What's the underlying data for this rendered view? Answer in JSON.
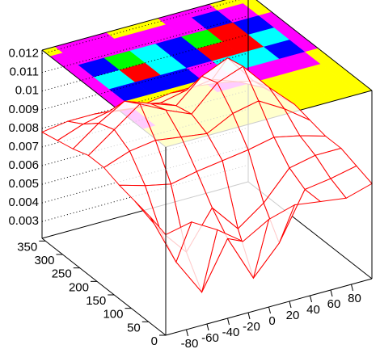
{
  "chart_data": {
    "type": "surface",
    "x": [
      -100,
      -75,
      -50,
      -25,
      0,
      25,
      50,
      75,
      100
    ],
    "y": [
      0,
      45,
      90,
      135,
      180,
      225,
      270,
      315,
      360
    ],
    "z": [
      [
        0.0075,
        0.0078,
        0.007,
        0.006,
        0.0068,
        0.0072,
        0.007,
        0.0068,
        0.0072
      ],
      [
        0.0078,
        0.005,
        0.003,
        0.0055,
        0.003,
        0.0045,
        0.007,
        0.0072,
        0.0075
      ],
      [
        0.008,
        0.006,
        0.0045,
        0.0065,
        0.005,
        0.006,
        0.0075,
        0.0078,
        0.0078
      ],
      [
        0.0082,
        0.0078,
        0.0075,
        0.0078,
        0.008,
        0.0082,
        0.0085,
        0.0082,
        0.0078
      ],
      [
        0.0085,
        0.009,
        0.0092,
        0.009,
        0.0088,
        0.0095,
        0.0098,
        0.009,
        0.008
      ],
      [
        0.0085,
        0.0095,
        0.0105,
        0.0098,
        0.0092,
        0.0105,
        0.011,
        0.0095,
        0.0082
      ],
      [
        0.0082,
        0.0092,
        0.01,
        0.0095,
        0.009,
        0.0102,
        0.0108,
        0.0092,
        0.008
      ],
      [
        0.008,
        0.0085,
        0.0088,
        0.0086,
        0.0085,
        0.0088,
        0.009,
        0.0085,
        0.0078
      ],
      [
        0.0078,
        0.008,
        0.008,
        0.0078,
        0.0078,
        0.008,
        0.008,
        0.0078,
        0.0076
      ]
    ],
    "color": "#ff0000",
    "contour_levels": [
      0.008,
      0.009,
      0.0095,
      0.01,
      0.0105
    ],
    "contour_colors": [
      "#ffff00",
      "#ff00ff",
      "#0000ff",
      "#00ffff",
      "#00ff00",
      "#ff0000"
    ],
    "xlim": [
      -100,
      100
    ],
    "ylim": [
      0,
      360
    ],
    "zlim": [
      0.0021,
      0.0122
    ],
    "xticks": [
      -80,
      -60,
      -40,
      -20,
      0,
      20,
      40,
      60,
      80
    ],
    "yticks": [
      0,
      50,
      100,
      150,
      200,
      250,
      300,
      350
    ],
    "zticks": [
      0.003,
      0.004,
      0.005,
      0.006,
      0.007,
      0.008,
      0.009,
      0.01,
      0.011,
      0.012
    ]
  }
}
